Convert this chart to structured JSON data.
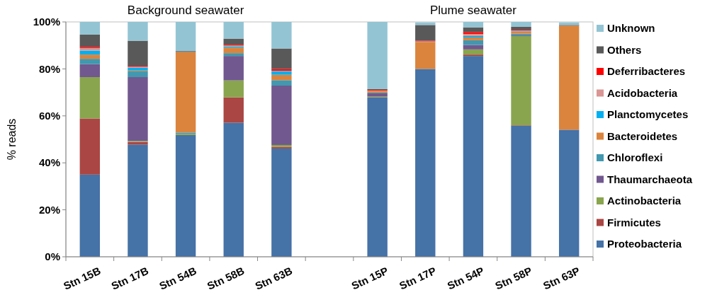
{
  "chart_data": {
    "type": "bar",
    "stacked": true,
    "categories": [
      "Stn 15B",
      "Stn 17B",
      "Stn 54B",
      "Stn 58B",
      "Stn 63B",
      null,
      "Stn 15P",
      "Stn 17P",
      "Stn 54P",
      "Stn 58P",
      "Stn 63P"
    ],
    "ylabel": "% reads",
    "annotations": [
      "Background seawater",
      "Plume seawater"
    ],
    "ylim": [
      0,
      100
    ],
    "yticks": [
      {
        "value": 0,
        "label": "0%"
      },
      {
        "value": 20,
        "label": "20%"
      },
      {
        "value": 40,
        "label": "40%"
      },
      {
        "value": 60,
        "label": "60%"
      },
      {
        "value": 80,
        "label": "80%"
      },
      {
        "value": 100,
        "label": "100%"
      }
    ],
    "grid": false,
    "legend": "right",
    "series": [
      {
        "name": "Proteobacteria",
        "color": "#4572a7",
        "values": [
          35.0,
          47.8,
          51.8,
          57.1,
          46.1,
          null,
          67.8,
          80.0,
          85.5,
          55.8,
          54.1
        ]
      },
      {
        "name": "Firmicutes",
        "color": "#aa4643",
        "values": [
          23.9,
          1.1,
          0,
          10.8,
          0.7,
          null,
          0,
          0,
          0.6,
          0.2,
          0
        ]
      },
      {
        "name": "Actinobacteria",
        "color": "#89a54e",
        "values": [
          17.6,
          0.4,
          0.5,
          7.2,
          0.8,
          null,
          0.4,
          0,
          2.2,
          38.0,
          0
        ]
      },
      {
        "name": "Thaumarchaeota",
        "color": "#71588f",
        "values": [
          5.5,
          27.2,
          0,
          10.4,
          25.3,
          null,
          1.4,
          0,
          1.9,
          0.3,
          0
        ]
      },
      {
        "name": "Chloroflexi",
        "color": "#4198af",
        "values": [
          2.3,
          2.4,
          0.6,
          1.2,
          2.3,
          null,
          0.3,
          0,
          2.0,
          0.7,
          0
        ]
      },
      {
        "name": "Bacteroidetes",
        "color": "#db843d",
        "values": [
          1.8,
          0.4,
          34.3,
          2.4,
          2.3,
          null,
          0.8,
          11.5,
          1.2,
          0.9,
          44.3
        ]
      },
      {
        "name": "Planctomycetes",
        "color": "#00b0f0",
        "values": [
          1.7,
          1.3,
          0,
          0.5,
          1.5,
          null,
          0,
          0,
          0.6,
          0.2,
          0
        ]
      },
      {
        "name": "Acidobacteria",
        "color": "#d99694",
        "values": [
          1.1,
          0.3,
          0,
          0.3,
          0.2,
          null,
          0.1,
          0.2,
          0.9,
          0.3,
          0
        ]
      },
      {
        "name": "Deferribacteres",
        "color": "#ff0000",
        "values": [
          0.5,
          0.4,
          0,
          0.4,
          0.8,
          null,
          0.3,
          0.3,
          0.8,
          0.3,
          0
        ]
      },
      {
        "name": "Others",
        "color": "#595959",
        "values": [
          5.2,
          10.7,
          0.4,
          2.6,
          8.7,
          null,
          0.3,
          6.7,
          2.0,
          1.2,
          0.3
        ]
      },
      {
        "name": "Unknown",
        "color": "#93c4d4",
        "values": [
          5.4,
          8.0,
          12.4,
          7.1,
          11.3,
          null,
          28.6,
          1.1,
          2.3,
          2.1,
          1.1
        ]
      }
    ]
  }
}
